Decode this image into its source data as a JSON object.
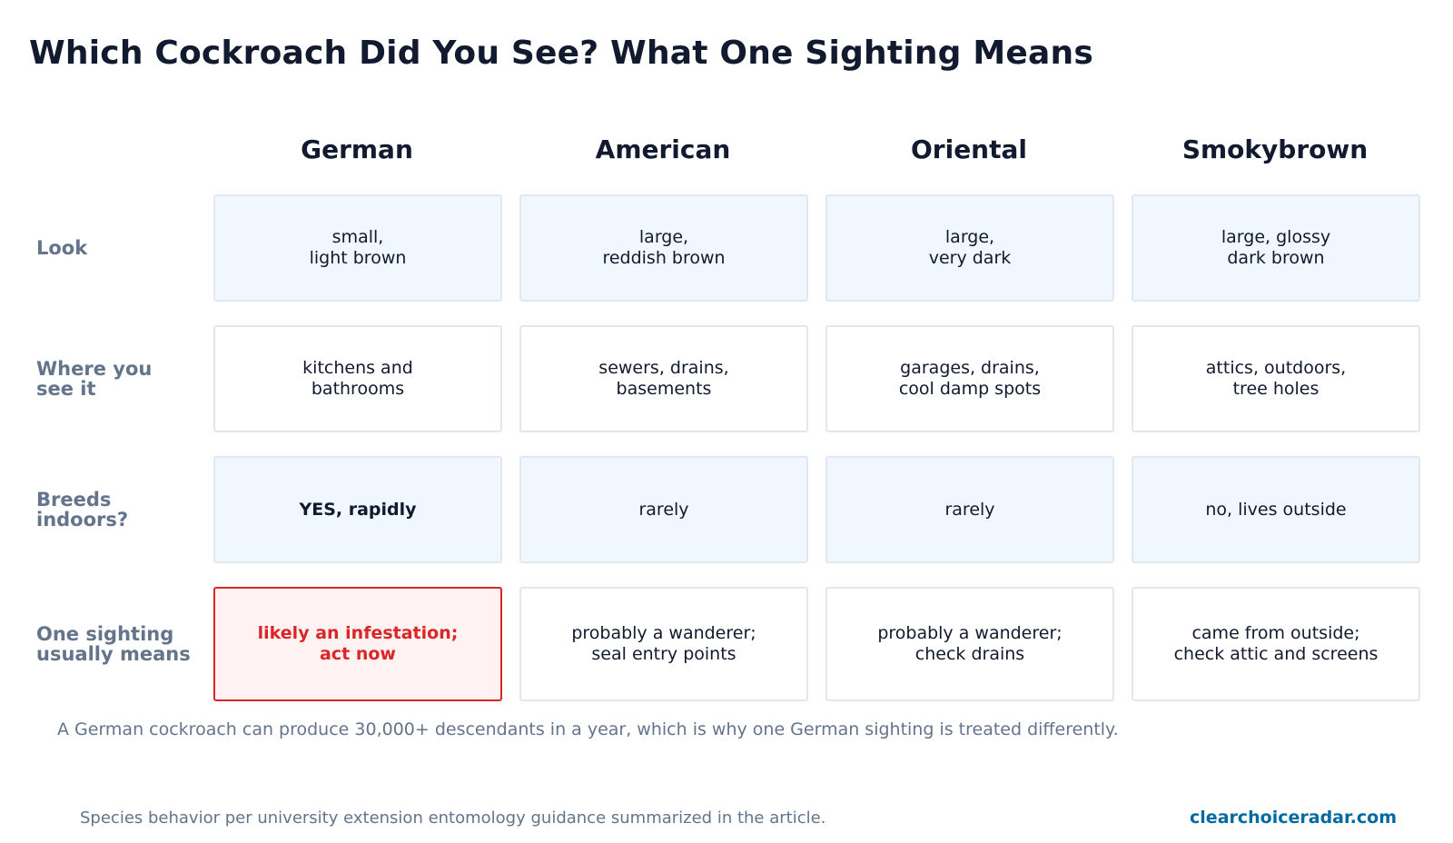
{
  "title": "Which Cockroach Did You See? What One Sighting Means",
  "columns": [
    "German",
    "American",
    "Oriental",
    "Smokybrown"
  ],
  "rows": [
    {
      "label": "Look",
      "cells": [
        "small,\nlight brown",
        "large,\nreddish brown",
        "large,\nvery dark",
        "large, glossy\ndark brown"
      ]
    },
    {
      "label": "Where you\nsee it",
      "cells": [
        "kitchens and\nbathrooms",
        "sewers, drains,\nbasements",
        "garages, drains,\ncool damp spots",
        "attics, outdoors,\ntree holes"
      ]
    },
    {
      "label": "Breeds\nindoors?",
      "cells": [
        "YES, rapidly",
        "rarely",
        "rarely",
        "no, lives outside"
      ]
    },
    {
      "label": "One sighting\nusually means",
      "cells": [
        "likely an infestation;\nact now",
        "probably a wanderer;\nseal entry points",
        "probably a wanderer;\ncheck drains",
        "came from outside;\ncheck attic and screens"
      ]
    }
  ],
  "note": "A German cockroach can produce 30,000+ descendants in a year, which is why one German sighting is treated differently.",
  "source": "Species behavior per university extension entomology guidance summarized in the article.",
  "brand": "clearchoiceradar.com",
  "colors": {
    "title": "#111a2e",
    "label": "#64748b",
    "tinted_cell": "#f0f7ff",
    "cell_border": "#e2e8f0",
    "alert": "#dc2626",
    "alert_bg": "#fef2f2",
    "brand": "#0369a1"
  }
}
